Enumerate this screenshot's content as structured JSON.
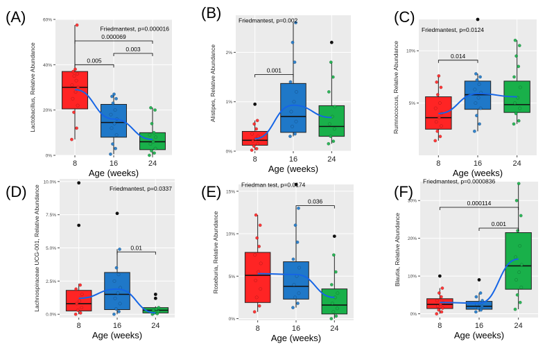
{
  "chart_data": [
    {
      "panel": "(A)",
      "type": "box",
      "ylabel": "Lactobacillus, Relative Abundance",
      "xlabel": "Age (weeks)",
      "categories": [
        "8",
        "16",
        "24"
      ],
      "ylim": [
        0,
        60
      ],
      "yticks": [
        0,
        20,
        40,
        60
      ],
      "ytick_labels": [
        "0%",
        "20%",
        "40%",
        "60%"
      ],
      "colors": [
        "#ff2424",
        "#1f78c8",
        "#19b04a"
      ],
      "boxes": [
        {
          "q1": 20.5,
          "median": 30,
          "q3": 37,
          "wlo": 7,
          "whi": 57.5,
          "points": [
            7,
            12,
            19,
            22,
            25,
            28,
            30,
            31,
            33,
            35,
            36,
            37,
            38,
            57.5
          ],
          "outliers": []
        },
        {
          "q1": 8,
          "median": 14.5,
          "q3": 22.5,
          "wlo": 0.5,
          "whi": 27,
          "points": [
            0.5,
            3,
            5,
            9,
            12,
            14,
            16,
            18,
            20,
            23,
            25,
            26,
            27
          ],
          "outliers": []
        },
        {
          "q1": 2.5,
          "median": 6,
          "q3": 10,
          "wlo": 0,
          "whi": 21,
          "points": [
            0,
            1,
            2,
            3,
            5,
            6,
            8,
            9,
            10,
            14,
            20,
            21
          ],
          "outliers": []
        }
      ],
      "trend": [
        29,
        16,
        7
      ],
      "annotations": [
        {
          "text": "Friedmantest, p=0.000016",
          "y": 55,
          "x": 3,
          "anchor": "end"
        },
        {
          "text": "0.000069",
          "from": 1,
          "to": 3,
          "y": 50.5
        },
        {
          "text": "0.005",
          "from": 1,
          "to": 2,
          "y": 40
        },
        {
          "text": "0.003",
          "from": 2,
          "to": 3,
          "y": 45
        }
      ]
    },
    {
      "panel": "(B)",
      "type": "box",
      "ylabel": "Alistipes, Relative Abundance",
      "xlabel": "Age (weeks)",
      "categories": [
        "8",
        "16",
        "24"
      ],
      "ylim": [
        0,
        2.75
      ],
      "yticks": [
        0,
        1,
        2
      ],
      "ytick_labels": [
        "0%",
        "1%",
        "2%"
      ],
      "colors": [
        "#ff2424",
        "#1f78c8",
        "#19b04a"
      ],
      "boxes": [
        {
          "q1": 0.12,
          "median": 0.22,
          "q3": 0.4,
          "wlo": 0.02,
          "whi": 0.62,
          "points": [
            0.02,
            0.05,
            0.1,
            0.15,
            0.2,
            0.25,
            0.3,
            0.35,
            0.45,
            0.55,
            0.62
          ],
          "outliers": [
            0.95
          ]
        },
        {
          "q1": 0.38,
          "median": 0.7,
          "q3": 1.37,
          "wlo": 0.3,
          "whi": 2.6,
          "points": [
            0.3,
            0.35,
            0.5,
            0.6,
            0.8,
            1.0,
            1.2,
            1.4,
            1.8,
            2.2,
            2.6
          ],
          "outliers": []
        },
        {
          "q1": 0.3,
          "median": 0.5,
          "q3": 0.92,
          "wlo": 0.15,
          "whi": 1.8,
          "points": [
            0.15,
            0.2,
            0.3,
            0.45,
            0.55,
            0.7,
            0.9,
            1.2,
            1.5,
            1.8
          ],
          "outliers": [
            2.2
          ]
        }
      ],
      "trend": [
        0.25,
        0.93,
        0.68
      ],
      "annotations": [
        {
          "text": "Friedmantest, p=0.002",
          "y": 2.6,
          "x": 1,
          "anchor": "start"
        },
        {
          "text": "0.001",
          "from": 1,
          "to": 2,
          "y": 1.55
        }
      ]
    },
    {
      "panel": "(C)",
      "type": "box",
      "ylabel": "Rumnococcus, Relative Abundance",
      "xlabel": "Age (weeks)",
      "categories": [
        "8",
        "16",
        "24"
      ],
      "ylim": [
        0,
        13
      ],
      "yticks": [
        5,
        10
      ],
      "ytick_labels": [
        "5%",
        "10%"
      ],
      "colors": [
        "#ff2424",
        "#1f78c8",
        "#19b04a"
      ],
      "boxes": [
        {
          "q1": 2.5,
          "median": 3.6,
          "q3": 5.6,
          "wlo": 1.4,
          "whi": 7.6,
          "points": [
            1.4,
            1.8,
            2.3,
            2.8,
            3.2,
            3.6,
            4.0,
            4.5,
            5.0,
            5.8,
            6.5,
            7.0,
            7.6
          ],
          "outliers": []
        },
        {
          "q1": 4.4,
          "median": 5.8,
          "q3": 7.1,
          "wlo": 2.3,
          "whi": 7.8,
          "points": [
            2.3,
            3.0,
            3.8,
            4.5,
            5.0,
            5.5,
            6.0,
            6.3,
            6.8,
            7.2,
            7.5,
            7.8
          ],
          "outliers": [
            13
          ]
        },
        {
          "q1": 4.1,
          "median": 4.85,
          "q3": 7.1,
          "wlo": 3.0,
          "whi": 11,
          "points": [
            3.0,
            3.3,
            4.0,
            4.5,
            5.0,
            5.5,
            6.5,
            7.5,
            8.5,
            9.5,
            10.5,
            11
          ],
          "outliers": []
        }
      ],
      "trend": [
        4.0,
        5.9,
        5.6
      ],
      "annotations": [
        {
          "text": "Friedmantest, p=0.0124",
          "y": 11.8,
          "x": 1,
          "anchor": "start"
        },
        {
          "text": "0.014",
          "from": 1,
          "to": 2,
          "y": 9.1
        }
      ]
    },
    {
      "panel": "(D)",
      "type": "box",
      "ylabel": "Lachnospiraceae UCG-001, Relative Abundance",
      "xlabel": "Age (weeks)",
      "categories": [
        "8",
        "16",
        "24"
      ],
      "ylim": [
        -0.25,
        10.2
      ],
      "yticks": [
        0,
        2.5,
        5,
        7.5,
        10
      ],
      "ytick_labels": [
        "0.0%",
        "2.5%",
        "5.0%",
        "7.5%",
        "10.0%"
      ],
      "colors": [
        "#ff2424",
        "#1f78c8",
        "#19b04a"
      ],
      "boxes": [
        {
          "q1": 0.25,
          "median": 0.8,
          "q3": 1.8,
          "wlo": 0,
          "whi": 2.3,
          "points": [
            0,
            0.1,
            0.3,
            0.5,
            0.8,
            1.0,
            1.5,
            1.9,
            2.2
          ],
          "outliers": [
            6.7,
            9.9
          ]
        },
        {
          "q1": 0.35,
          "median": 1.5,
          "q3": 3.15,
          "wlo": 0,
          "whi": 4.9,
          "points": [
            0,
            0.2,
            0.4,
            0.8,
            1.2,
            1.6,
            2.0,
            2.5,
            3.0,
            3.5,
            4.9
          ],
          "outliers": [
            7.6
          ]
        },
        {
          "q1": 0.1,
          "median": 0.3,
          "q3": 0.5,
          "wlo": 0,
          "whi": 0.6,
          "points": [
            0,
            0.05,
            0.1,
            0.2,
            0.3,
            0.4,
            0.5
          ],
          "outliers": [
            1.2,
            1.5
          ]
        }
      ],
      "trend": [
        1.2,
        1.9,
        0.1
      ],
      "annotations": [
        {
          "text": "Friedmantest, p=0.0337",
          "y": 9.3,
          "x": 3,
          "anchor": "end"
        },
        {
          "text": "0.01",
          "from": 2,
          "to": 3,
          "y": 4.7
        }
      ]
    },
    {
      "panel": "(E)",
      "type": "box",
      "ylabel": "Roseburia, Relative Abundance",
      "xlabel": "Age (weeks)",
      "categories": [
        "8",
        "16",
        "24"
      ],
      "ylim": [
        -0.2,
        15.8
      ],
      "yticks": [
        0,
        5,
        10,
        15
      ],
      "ytick_labels": [
        "0%",
        "5%",
        "10%",
        "15%"
      ],
      "colors": [
        "#ff2424",
        "#1f78c8",
        "#19b04a"
      ],
      "boxes": [
        {
          "q1": 1.9,
          "median": 5.1,
          "q3": 7.8,
          "wlo": 0.8,
          "whi": 12.2,
          "points": [
            0.8,
            1.5,
            2.5,
            3.5,
            4.5,
            5.5,
            6.5,
            7.5,
            8.5,
            9.5,
            11,
            12.2
          ],
          "outliers": []
        },
        {
          "q1": 2.3,
          "median": 3.8,
          "q3": 6.7,
          "wlo": 1.3,
          "whi": 13,
          "points": [
            1.3,
            1.8,
            2.5,
            3.0,
            4.0,
            5.0,
            6.0,
            7.0,
            9.0,
            11,
            13
          ],
          "outliers": [
            15.8
          ]
        },
        {
          "q1": 0.55,
          "median": 1.6,
          "q3": 3.5,
          "wlo": 0,
          "whi": 7.6,
          "points": [
            0,
            0.3,
            0.8,
            1.2,
            1.8,
            2.5,
            3.0,
            4.0,
            5.5,
            7.5
          ],
          "outliers": [
            9.7
          ]
        }
      ],
      "trend": [
        5.3,
        5.2,
        2.5
      ],
      "annotations": [
        {
          "text": "Friedman test, p=0.0174",
          "y": 15.5,
          "x": 1,
          "anchor": "start"
        },
        {
          "text": "0.036",
          "from": 2,
          "to": 3,
          "y": 13.3
        }
      ]
    },
    {
      "panel": "(F)",
      "type": "box",
      "ylabel": "Blautia, Relative Abundance",
      "xlabel": "Age (weeks)",
      "categories": [
        "8",
        "16",
        "24"
      ],
      "ylim": [
        -1,
        35
      ],
      "yticks": [
        0,
        10,
        20,
        30
      ],
      "ytick_labels": [
        "0%",
        "10%",
        "20%",
        "30%"
      ],
      "colors": [
        "#ff2424",
        "#1f78c8",
        "#19b04a"
      ],
      "boxes": [
        {
          "q1": 1.4,
          "median": 2.5,
          "q3": 4.0,
          "wlo": 0,
          "whi": 6.8,
          "points": [
            0,
            0.5,
            1.0,
            1.5,
            2.0,
            2.5,
            3.0,
            3.5,
            4.5,
            5.5,
            6.8
          ],
          "outliers": [
            10
          ]
        },
        {
          "q1": 1.2,
          "median": 2.0,
          "q3": 3.3,
          "wlo": 0.5,
          "whi": 5.5,
          "points": [
            0.5,
            1.0,
            1.5,
            2.0,
            2.5,
            3.0,
            3.5,
            4.5,
            5.5
          ],
          "outliers": [
            9
          ]
        },
        {
          "q1": 6.5,
          "median": 12.7,
          "q3": 21.5,
          "wlo": 1.2,
          "whi": 34.5,
          "points": [
            1.2,
            3,
            5,
            7,
            9,
            11,
            13,
            15,
            18,
            22,
            26,
            30,
            34.5
          ],
          "outliers": []
        }
      ],
      "trend": [
        3.0,
        2.8,
        14.5
      ],
      "annotations": [
        {
          "text": "Friedmantest, p=0.0000836",
          "y": 34.5,
          "x": 1,
          "anchor": "start"
        },
        {
          "text": "0.000114",
          "from": 1,
          "to": 3,
          "y": 28.2
        },
        {
          "text": "0.001",
          "from": 2,
          "to": 3,
          "y": 22.7
        }
      ]
    }
  ]
}
